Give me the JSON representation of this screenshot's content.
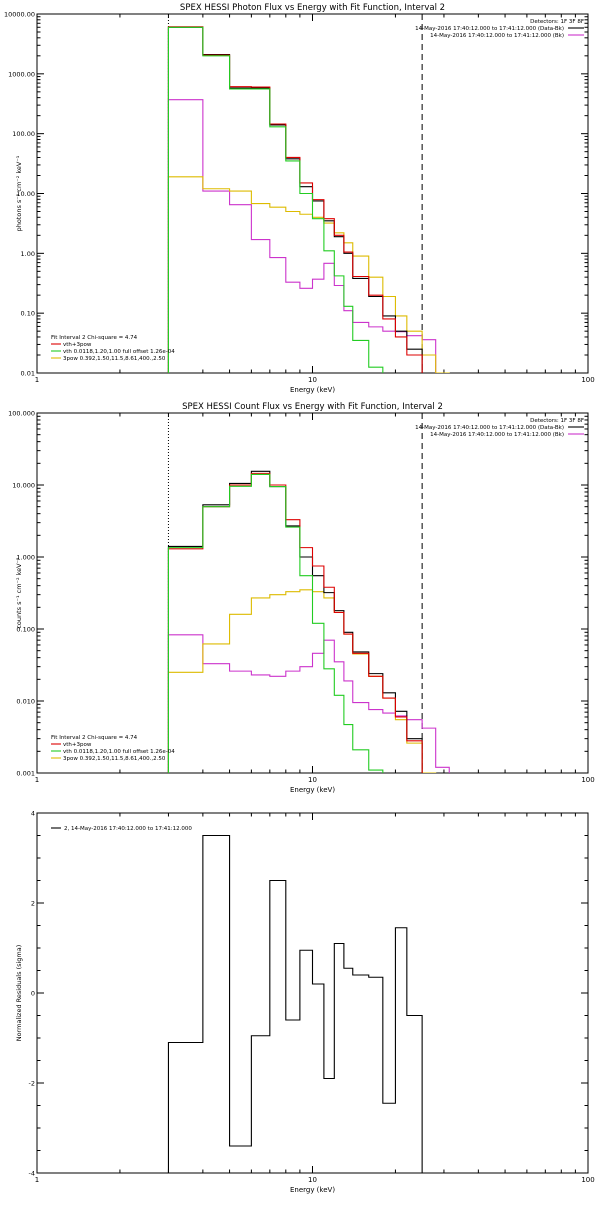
{
  "chart_data": [
    {
      "type": "line",
      "title": "SPEX HESSI Photon Flux vs Energy with Fit Function, Interval 2",
      "xlabel": "Energy (keV)",
      "ylabel": "photons s⁻¹ cm⁻² keV⁻¹",
      "xscale": "log",
      "yscale": "log",
      "xlim": [
        1,
        100
      ],
      "ylim": [
        0.01,
        10000
      ],
      "xticks": [
        1,
        10,
        100
      ],
      "xtick_labels": [
        "1",
        "10",
        "100"
      ],
      "yticks": [
        0.01,
        0.1,
        1,
        10,
        100,
        1000,
        10000
      ],
      "ytick_labels": [
        "0.01",
        "0.10",
        "1.00",
        "10.00",
        "100.00",
        "1000.00",
        "10000.00"
      ],
      "vlines": [
        {
          "x": 3.0,
          "style": "dotted",
          "color": "#000000"
        },
        {
          "x": 25.0,
          "style": "dashed",
          "color": "#000000"
        }
      ],
      "header_lines": [
        {
          "text": "Detectors: 1F 3F 8F",
          "color": "#000000"
        },
        {
          "text": "14-May-2016 17:40:12.000 to 17:41:12.000 (Data-Bk)",
          "color": "#000000"
        },
        {
          "text": "14-May-2016 17:40:12.000 to 17:41:12.000 (Bk)",
          "color": "#cc33cc"
        }
      ],
      "legend_lines": [
        {
          "text": "Fit Interval 2   Chi-square = 4.74",
          "color": "#000000"
        },
        {
          "text": "vth+3pow",
          "color": "#dd0000"
        },
        {
          "text": "vth 0.0118,1.20,1.00  full offset 1.26e-04",
          "color": "#22cc22"
        },
        {
          "text": "3pow 0.392,1.50,11.5,8.61,400.,2.50",
          "color": "#ddbb00"
        }
      ],
      "edges": [
        3.0,
        4.0,
        5.0,
        6.0,
        7.0,
        8.0,
        9.0,
        10.0,
        11.0,
        12.0,
        13.0,
        14.0,
        16.0,
        18.0,
        20.0,
        22.0,
        25.0
      ],
      "series": [
        {
          "role": "data",
          "color": "#000000",
          "values": [
            6000,
            2100,
            580,
            580,
            140,
            38,
            13,
            7.5,
            3.5,
            1.9,
            1.0,
            0.38,
            0.19,
            0.09,
            0.05,
            0.025
          ]
        },
        {
          "role": "total",
          "color": "#dd0000",
          "values": [
            6100,
            2050,
            610,
            600,
            145,
            40,
            15,
            7.9,
            3.8,
            2.0,
            1.05,
            0.41,
            0.2,
            0.08,
            0.04,
            0.02
          ]
        },
        {
          "role": "vth",
          "color": "#22cc22",
          "values": [
            6000,
            2000,
            560,
            560,
            130,
            35,
            10,
            3.8,
            1.1,
            0.42,
            0.13,
            0.035,
            0.0125,
            0.0008
          ]
        },
        {
          "role": "3pow",
          "color": "#ddbb00",
          "values": [
            19,
            12,
            11,
            6.8,
            5.9,
            5.0,
            4.5,
            4.0,
            3.2,
            2.2,
            1.5,
            0.9,
            0.4,
            0.19,
            0.09,
            0.05,
            0.02,
            0.01
          ]
        },
        {
          "role": "bk",
          "color": "#cc33cc",
          "values": [
            370,
            11,
            6.5,
            1.7,
            0.85,
            0.33,
            0.26,
            0.37,
            0.68,
            0.29,
            0.11,
            0.07,
            0.059,
            0.05,
            0.049,
            0.042,
            0.036,
            0.008
          ]
        }
      ]
    },
    {
      "type": "line",
      "title": "SPEX HESSI Count Flux vs Energy with Fit Function, Interval 2",
      "xlabel": "Energy (keV)",
      "ylabel": "counts s⁻¹ cm⁻² keV⁻¹",
      "xscale": "log",
      "yscale": "log",
      "xlim": [
        1,
        100
      ],
      "ylim": [
        0.001,
        100
      ],
      "xticks": [
        1,
        10,
        100
      ],
      "xtick_labels": [
        "1",
        "10",
        "100"
      ],
      "yticks": [
        0.001,
        0.01,
        0.1,
        1,
        10,
        100
      ],
      "ytick_labels": [
        "0.001",
        "0.010",
        "0.100",
        "1.000",
        "10.000",
        "100.000"
      ],
      "vlines": [
        {
          "x": 3.0,
          "style": "dotted",
          "color": "#000000"
        },
        {
          "x": 25.0,
          "style": "dashed",
          "color": "#000000"
        }
      ],
      "header_lines": [
        {
          "text": "Detectors: 1F 3F 8F",
          "color": "#000000"
        },
        {
          "text": "14-May-2016 17:40:12.000 to 17:41:12.000 (Data-Bk)",
          "color": "#000000"
        },
        {
          "text": "14-May-2016 17:40:12.000 to 17:41:12.000 (Bk)",
          "color": "#cc33cc"
        }
      ],
      "legend_lines": [
        {
          "text": "Fit Interval 2   Chi-square = 4.74",
          "color": "#000000"
        },
        {
          "text": "vth+3pow",
          "color": "#dd0000"
        },
        {
          "text": "vth 0.0118,1.20,1.00  full offset 1.26e-04",
          "color": "#22cc22"
        },
        {
          "text": "3pow 0.392,1.50,11.5,8.61,400.,2.50",
          "color": "#ddbb00"
        }
      ],
      "edges": [
        3.0,
        4.0,
        5.0,
        6.0,
        7.0,
        8.0,
        9.0,
        10.0,
        11.0,
        12.0,
        13.0,
        14.0,
        16.0,
        18.0,
        20.0,
        22.0,
        25.0
      ],
      "series": [
        {
          "role": "data",
          "color": "#000000",
          "values": [
            1.4,
            5.3,
            10.5,
            15.5,
            9.5,
            2.7,
            1.0,
            0.55,
            0.32,
            0.18,
            0.09,
            0.048,
            0.024,
            0.013,
            0.0072,
            0.003
          ]
        },
        {
          "role": "total",
          "color": "#dd0000",
          "values": [
            1.3,
            5.0,
            10.0,
            14.5,
            10.0,
            3.3,
            1.35,
            0.75,
            0.38,
            0.17,
            0.085,
            0.046,
            0.022,
            0.011,
            0.006,
            0.0028
          ]
        },
        {
          "role": "vth",
          "color": "#22cc22",
          "values": [
            1.35,
            5.0,
            9.6,
            14.0,
            9.5,
            2.6,
            0.55,
            0.12,
            0.028,
            0.012,
            0.0047,
            0.0021,
            0.0011
          ]
        },
        {
          "role": "3pow",
          "color": "#ddbb00",
          "values": [
            0.025,
            0.062,
            0.16,
            0.27,
            0.3,
            0.33,
            0.35,
            0.33,
            0.27,
            0.17,
            0.085,
            0.045,
            0.022,
            0.011,
            0.0055,
            0.0026,
            0.001,
            0.0005
          ]
        },
        {
          "role": "bk",
          "color": "#cc33cc",
          "values": [
            0.083,
            0.033,
            0.026,
            0.023,
            0.022,
            0.026,
            0.03,
            0.046,
            0.07,
            0.035,
            0.019,
            0.0095,
            0.0076,
            0.0068,
            0.0062,
            0.0055,
            0.0042,
            0.0012
          ]
        }
      ]
    },
    {
      "type": "line",
      "title": "",
      "xlabel": "Energy (keV)",
      "ylabel": "Normalized Residuals (sigma)",
      "xscale": "log",
      "yscale": "linear",
      "xlim": [
        1,
        100
      ],
      "ylim": [
        -4,
        4
      ],
      "xticks": [
        1,
        10,
        100
      ],
      "xtick_labels": [
        "1",
        "10",
        "100"
      ],
      "yticks": [
        -4,
        -2,
        0,
        2,
        4
      ],
      "ytick_labels": [
        "-4",
        "-2",
        "0",
        "2",
        "4"
      ],
      "legend_lines": [
        {
          "text": "2, 14-May-2016 17:40:12.000 to 17:41:12.000",
          "color": "#000000"
        }
      ],
      "edges": [
        3.0,
        4.0,
        5.0,
        6.0,
        7.0,
        8.0,
        9.0,
        10.0,
        11.0,
        12.0,
        13.0,
        14.0,
        16.0,
        18.0,
        20.0,
        22.0,
        25.0
      ],
      "series": [
        {
          "role": "residuals",
          "color": "#000000",
          "values": [
            -1.1,
            3.5,
            -3.4,
            -0.95,
            2.5,
            -0.6,
            0.95,
            0.2,
            -1.9,
            1.1,
            0.55,
            0.4,
            0.35,
            -2.45,
            1.45,
            -0.5
          ]
        }
      ]
    }
  ]
}
